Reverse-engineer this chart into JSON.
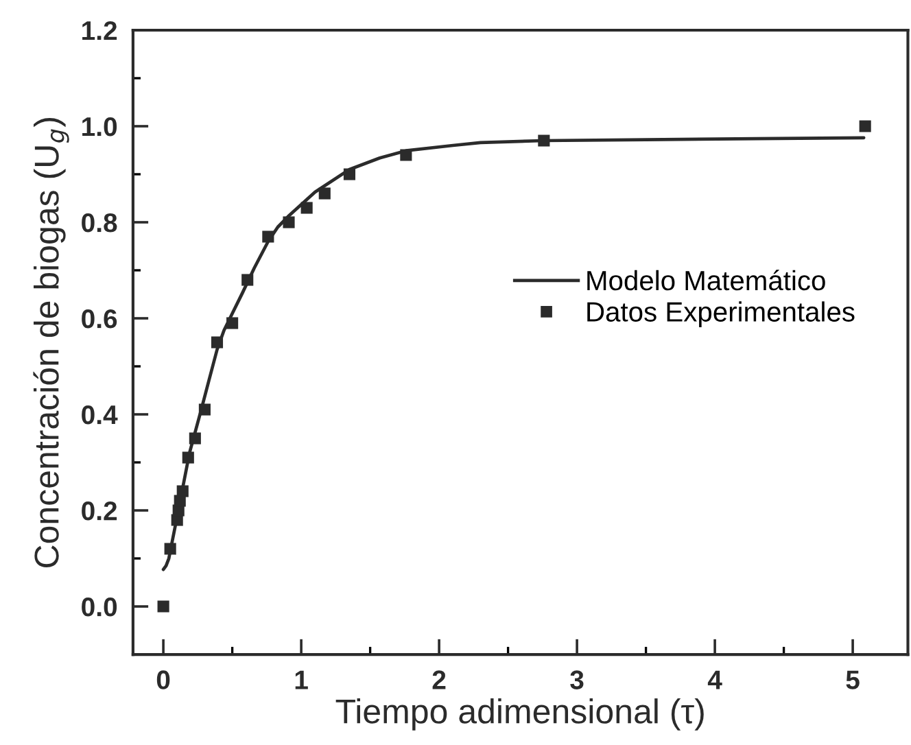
{
  "chart_data": {
    "type": "line",
    "xlabel": "Tiempo adimensional (τ)",
    "ylabel": "Concentración de biogas (U$_{g}$)",
    "xlim": [
      -0.22,
      5.4
    ],
    "ylim": [
      -0.1,
      1.2
    ],
    "xticks": [
      0,
      {
        "value": 0.5,
        "label": null
      },
      1,
      {
        "value": 1.5,
        "label": null
      },
      2,
      {
        "value": 2.5,
        "label": null
      },
      3,
      {
        "value": 3.5,
        "label": null
      },
      4,
      {
        "value": 4.5,
        "label": null
      },
      5
    ],
    "yticks": [
      {
        "value": 0,
        "label": "0.0"
      },
      {
        "value": 0.1,
        "label": null
      },
      0.2,
      {
        "value": 0.3,
        "label": null
      },
      0.4,
      {
        "value": 0.5,
        "label": null
      },
      0.6,
      {
        "value": 0.7,
        "label": null
      },
      0.8,
      {
        "value": 0.9,
        "label": null
      },
      {
        "value": 1,
        "label": "1.0"
      },
      {
        "value": 1.1,
        "label": null
      },
      1.2
    ],
    "series": [
      {
        "name": "Modelo Matemático",
        "color": "#2b2b2b",
        "line_style": "solid",
        "x": [
          0.0,
          0.02,
          0.04,
          0.093,
          0.19,
          0.275,
          0.33,
          0.39,
          0.44,
          0.5,
          0.574,
          0.66,
          0.76,
          0.83,
          0.905,
          1.1,
          1.35,
          1.57,
          1.76,
          2.1,
          2.3,
          2.76,
          3.5,
          4.3,
          5.08
        ],
        "values": [
          0.077,
          0.085,
          0.1,
          0.177,
          0.32,
          0.41,
          0.47,
          0.535,
          0.575,
          0.61,
          0.653,
          0.705,
          0.76,
          0.79,
          0.812,
          0.863,
          0.91,
          0.934,
          0.949,
          0.96,
          0.966,
          0.97,
          0.972,
          0.974,
          0.976
        ]
      },
      {
        "name": "Datos Experimentales",
        "type": "scatter",
        "color": "#2b2b2b",
        "marker": "square",
        "x": [
          0.0,
          0.05,
          0.1,
          0.11,
          0.12,
          0.14,
          0.18,
          0.23,
          0.3,
          0.39,
          0.5,
          0.61,
          0.76,
          0.91,
          1.04,
          1.17,
          1.35,
          1.76,
          2.76,
          5.09
        ],
        "values": [
          0.0,
          0.12,
          0.18,
          0.2,
          0.22,
          0.24,
          0.31,
          0.35,
          0.41,
          0.55,
          0.59,
          0.68,
          0.77,
          0.8,
          0.83,
          0.86,
          0.9,
          0.94,
          0.97,
          1.0
        ]
      }
    ],
    "legend": "right",
    "grid": false
  }
}
